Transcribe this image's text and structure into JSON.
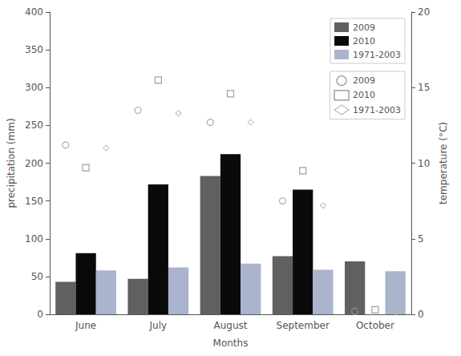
{
  "chart_data": {
    "type": "bar",
    "categories": [
      "June",
      "July",
      "August",
      "September",
      "October"
    ],
    "xlabel": "Months",
    "ylabel": "precipitation (mm)",
    "y2label": "temperature (°C)",
    "ylim": [
      0,
      400
    ],
    "yticks": [
      0,
      50,
      100,
      150,
      200,
      250,
      300,
      350,
      400
    ],
    "y2lim": [
      0,
      20
    ],
    "y2ticks": [
      0,
      5,
      10,
      15,
      20
    ],
    "grid": false,
    "legend": "upper right",
    "series": [
      {
        "name": "2009",
        "type": "bar",
        "color": "#606060",
        "values": [
          43,
          47,
          183,
          77,
          70
        ]
      },
      {
        "name": "2010",
        "type": "bar",
        "color": "#0a0a0a",
        "values": [
          81,
          172,
          212,
          165,
          0
        ]
      },
      {
        "name": "1971-2003",
        "type": "bar",
        "color": "#aab4cc",
        "values": [
          58,
          62,
          67,
          59,
          57
        ]
      },
      {
        "name": "2009",
        "type": "scatter",
        "axis": "y2",
        "marker": "circle",
        "color": "#999999",
        "values": [
          11.2,
          13.5,
          12.7,
          7.5,
          0.2
        ]
      },
      {
        "name": "2010",
        "type": "scatter",
        "axis": "y2",
        "marker": "square",
        "color": "#888888",
        "values": [
          9.7,
          15.5,
          14.6,
          9.5,
          0.3
        ]
      },
      {
        "name": "1971-2003",
        "type": "scatter",
        "axis": "y2",
        "marker": "diamond",
        "color": "#bbbbbb",
        "values": [
          11.0,
          13.3,
          12.7,
          7.2,
          0.15
        ]
      }
    ]
  }
}
